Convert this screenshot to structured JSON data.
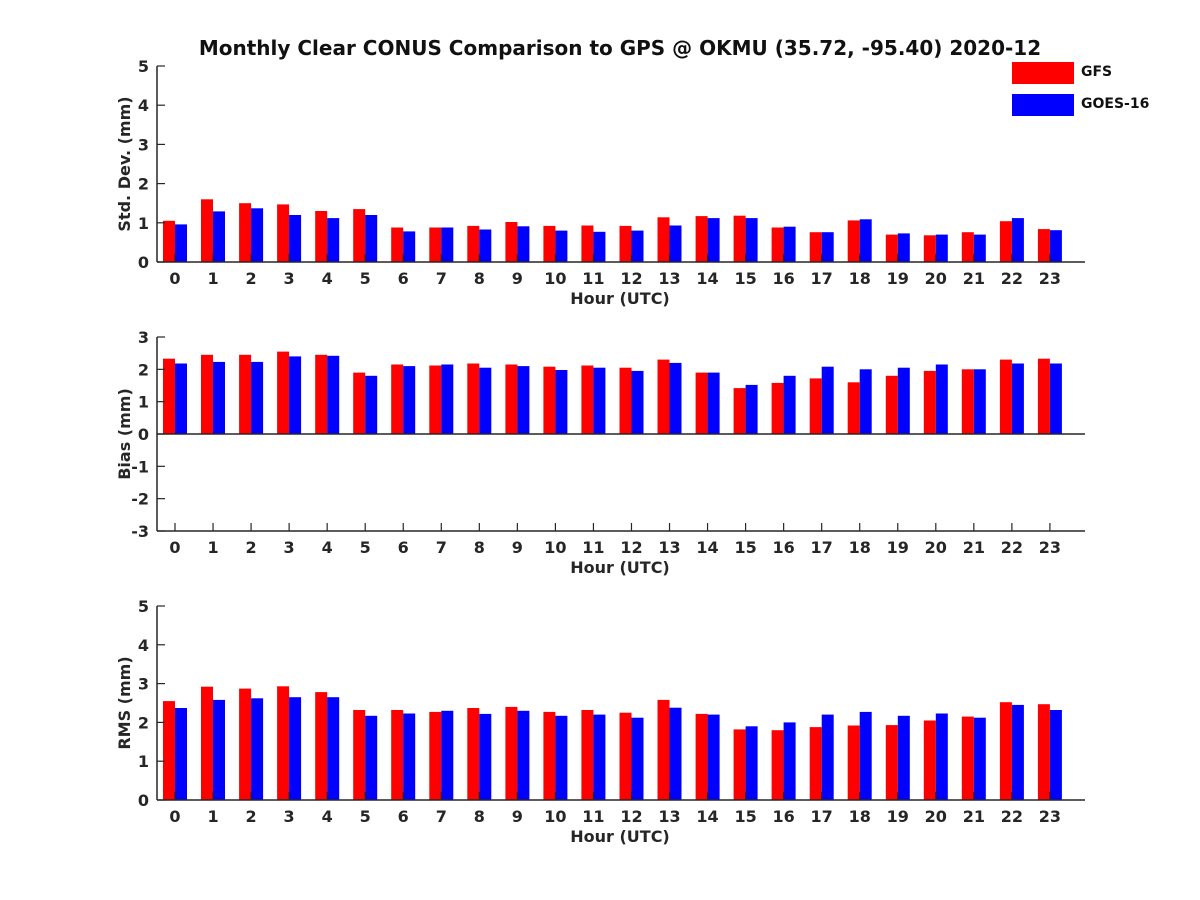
{
  "figure": {
    "title": "Monthly Clear CONUS Comparison to GPS @ OKMU (35.72, -95.40) 2020-12",
    "legend": [
      {
        "label": "GFS",
        "color": "#ff0000"
      },
      {
        "label": "GOES-16",
        "color": "#0000ff"
      }
    ]
  },
  "chart_data": [
    {
      "type": "bar",
      "xlabel": "Hour (UTC)",
      "ylabel": "Std. Dev. (mm)",
      "ylim": [
        0,
        5
      ],
      "yticks": [
        0,
        1,
        2,
        3,
        4,
        5
      ],
      "categories": [
        "0",
        "1",
        "2",
        "3",
        "4",
        "5",
        "6",
        "7",
        "8",
        "9",
        "10",
        "11",
        "12",
        "13",
        "14",
        "15",
        "16",
        "17",
        "18",
        "19",
        "20",
        "21",
        "22",
        "23"
      ],
      "series": [
        {
          "name": "GFS",
          "color": "#ff0000",
          "values": [
            1.05,
            1.6,
            1.5,
            1.47,
            1.3,
            1.35,
            0.88,
            0.88,
            0.92,
            1.02,
            0.92,
            0.93,
            0.92,
            1.14,
            1.17,
            1.18,
            0.88,
            0.76,
            1.06,
            0.7,
            0.68,
            0.76,
            1.04,
            0.84
          ]
        },
        {
          "name": "GOES-16",
          "color": "#0000ff",
          "values": [
            0.96,
            1.29,
            1.37,
            1.2,
            1.12,
            1.2,
            0.78,
            0.88,
            0.83,
            0.91,
            0.8,
            0.77,
            0.8,
            0.93,
            1.12,
            1.12,
            0.9,
            0.76,
            1.09,
            0.73,
            0.7,
            0.7,
            1.12,
            0.81
          ]
        }
      ]
    },
    {
      "type": "bar",
      "xlabel": "Hour (UTC)",
      "ylabel": "Bias (mm)",
      "ylim": [
        -3,
        3
      ],
      "yticks": [
        -3,
        -2,
        -1,
        0,
        1,
        2,
        3
      ],
      "categories": [
        "0",
        "1",
        "2",
        "3",
        "4",
        "5",
        "6",
        "7",
        "8",
        "9",
        "10",
        "11",
        "12",
        "13",
        "14",
        "15",
        "16",
        "17",
        "18",
        "19",
        "20",
        "21",
        "22",
        "23"
      ],
      "series": [
        {
          "name": "GFS",
          "color": "#ff0000",
          "values": [
            2.33,
            2.45,
            2.45,
            2.55,
            2.45,
            1.9,
            2.15,
            2.12,
            2.18,
            2.15,
            2.08,
            2.12,
            2.05,
            2.3,
            1.9,
            1.42,
            1.58,
            1.72,
            1.6,
            1.8,
            1.95,
            2.0,
            2.3,
            2.33
          ]
        },
        {
          "name": "GOES-16",
          "color": "#0000ff",
          "values": [
            2.18,
            2.23,
            2.23,
            2.4,
            2.42,
            1.8,
            2.1,
            2.15,
            2.05,
            2.1,
            1.98,
            2.05,
            1.95,
            2.2,
            1.9,
            1.52,
            1.8,
            2.08,
            2.0,
            2.05,
            2.15,
            2.0,
            2.18,
            2.18
          ]
        }
      ]
    },
    {
      "type": "bar",
      "xlabel": "Hour (UTC)",
      "ylabel": "RMS (mm)",
      "ylim": [
        0,
        5
      ],
      "yticks": [
        0,
        1,
        2,
        3,
        4,
        5
      ],
      "categories": [
        "0",
        "1",
        "2",
        "3",
        "4",
        "5",
        "6",
        "7",
        "8",
        "9",
        "10",
        "11",
        "12",
        "13",
        "14",
        "15",
        "16",
        "17",
        "18",
        "19",
        "20",
        "21",
        "22",
        "23"
      ],
      "series": [
        {
          "name": "GFS",
          "color": "#ff0000",
          "values": [
            2.55,
            2.92,
            2.87,
            2.93,
            2.78,
            2.32,
            2.32,
            2.27,
            2.37,
            2.4,
            2.27,
            2.32,
            2.25,
            2.58,
            2.22,
            1.82,
            1.8,
            1.88,
            1.92,
            1.93,
            2.05,
            2.15,
            2.52,
            2.47
          ]
        },
        {
          "name": "GOES-16",
          "color": "#0000ff",
          "values": [
            2.37,
            2.58,
            2.62,
            2.65,
            2.65,
            2.17,
            2.23,
            2.3,
            2.22,
            2.3,
            2.17,
            2.2,
            2.12,
            2.38,
            2.2,
            1.9,
            2.0,
            2.2,
            2.27,
            2.17,
            2.23,
            2.12,
            2.45,
            2.32
          ]
        }
      ]
    }
  ]
}
